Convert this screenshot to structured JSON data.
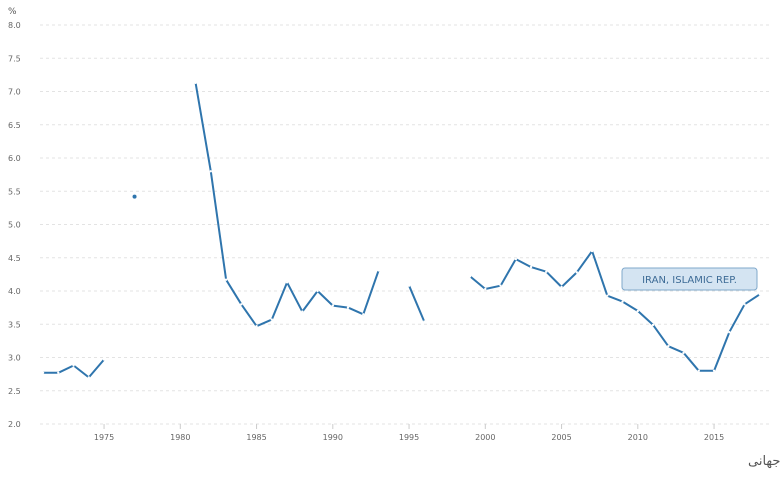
{
  "chart_data": {
    "type": "line",
    "ylabel": "%",
    "ylim": [
      2.0,
      8.0
    ],
    "yticks": [
      "2.0",
      "2.5",
      "3.0",
      "3.5",
      "4.0",
      "4.5",
      "5.0",
      "5.5",
      "6.0",
      "6.5",
      "7.0",
      "7.5",
      "8.0"
    ],
    "xlim": [
      1970.8,
      2018.8
    ],
    "xticks": [
      "1975",
      "1980",
      "1985",
      "1990",
      "1995",
      "2000",
      "2005",
      "2010",
      "2015"
    ],
    "grid": true,
    "series": [
      {
        "name": "IRAN, ISLAMIC REP.",
        "color": "#2f75ad",
        "points": [
          [
            1971,
            2.77
          ],
          [
            1972,
            2.77
          ],
          [
            1973,
            2.88
          ],
          [
            1974,
            2.7
          ],
          [
            1975,
            2.97
          ],
          [
            1976,
            null
          ],
          [
            1977,
            5.42
          ],
          [
            1978,
            null
          ],
          [
            1979,
            null
          ],
          [
            1980,
            null
          ],
          [
            1981,
            7.13
          ],
          [
            1982,
            5.8
          ],
          [
            1983,
            4.17
          ],
          [
            1984,
            3.8
          ],
          [
            1985,
            3.47
          ],
          [
            1986,
            3.57
          ],
          [
            1987,
            4.13
          ],
          [
            1988,
            3.69
          ],
          [
            1989,
            4.0
          ],
          [
            1990,
            3.78
          ],
          [
            1991,
            3.75
          ],
          [
            1992,
            3.65
          ],
          [
            1993,
            4.31
          ],
          [
            1994,
            null
          ],
          [
            1995,
            4.08
          ],
          [
            1996,
            3.54
          ],
          [
            1997,
            null
          ],
          [
            1998,
            null
          ],
          [
            1999,
            4.22
          ],
          [
            2000,
            4.03
          ],
          [
            2001,
            4.08
          ],
          [
            2002,
            4.48
          ],
          [
            2003,
            4.36
          ],
          [
            2004,
            4.29
          ],
          [
            2005,
            4.06
          ],
          [
            2006,
            4.28
          ],
          [
            2007,
            4.6
          ],
          [
            2008,
            3.93
          ],
          [
            2009,
            3.84
          ],
          [
            2010,
            3.7
          ],
          [
            2011,
            3.49
          ],
          [
            2012,
            3.17
          ],
          [
            2013,
            3.07
          ],
          [
            2014,
            2.8
          ],
          [
            2015,
            2.8
          ],
          [
            2016,
            3.38
          ],
          [
            2017,
            3.8
          ],
          [
            2018,
            3.95
          ]
        ]
      }
    ],
    "series_label": "IRAN, ISLAMIC REP.",
    "source": "منبع: بانک جهانی"
  }
}
